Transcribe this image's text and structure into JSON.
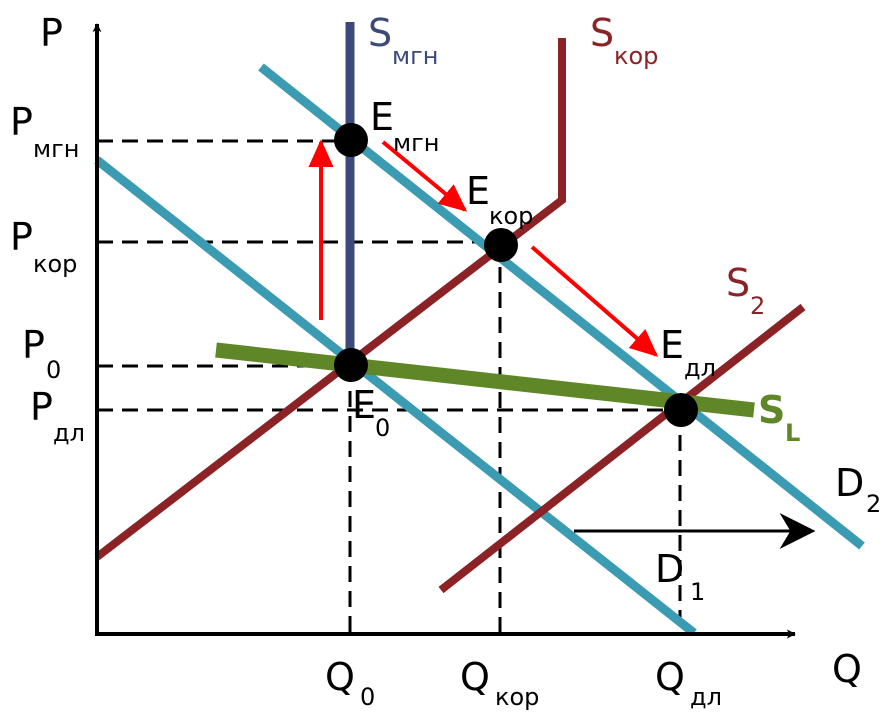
{
  "axes": {
    "y_label": "P",
    "x_label": "Q"
  },
  "price_labels": {
    "p_mgn": {
      "main": "P",
      "sub": "мгн"
    },
    "p_kor": {
      "main": "P",
      "sub": "кор"
    },
    "p_0": {
      "main": "P",
      "sub": "0"
    },
    "p_dl": {
      "main": "P",
      "sub": "дл"
    }
  },
  "quantity_labels": {
    "q_0": {
      "main": "Q",
      "sub": "0"
    },
    "q_kor": {
      "main": "Q",
      "sub": "кор"
    },
    "q_dl": {
      "main": "Q",
      "sub": "дл"
    }
  },
  "curve_labels": {
    "s_mgn": {
      "main": "S",
      "sub": "мгн"
    },
    "s_kor": {
      "main": "S",
      "sub": "кор"
    },
    "s_2": {
      "main": "S",
      "sub": "2"
    },
    "s_l": {
      "main": "S",
      "sub": "L"
    },
    "d_1": {
      "main": "D",
      "sub": "1"
    },
    "d_2": {
      "main": "D",
      "sub": "2"
    }
  },
  "point_labels": {
    "e_mgn": {
      "main": "E",
      "sub": "мгн"
    },
    "e_kor": {
      "main": "E",
      "sub": "кор"
    },
    "e_dl": {
      "main": "E",
      "sub": "дл"
    },
    "e_0": {
      "main": "E",
      "sub": "0"
    }
  },
  "colors": {
    "demand": "#3a9bb2",
    "supply_short": "#8b2226",
    "supply_instant": "#3b4a78",
    "supply_long": "#5f8728",
    "arrow": "#ff0000",
    "axis": "#000000",
    "points": "#000000"
  }
}
